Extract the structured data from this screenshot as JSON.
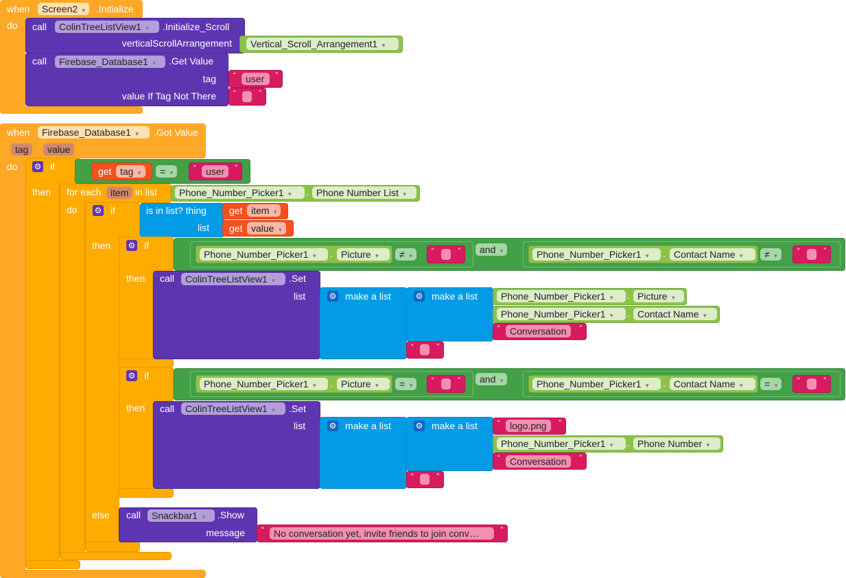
{
  "b1": {
    "when": "when",
    "component": "Screen2",
    "event": ".Initialize",
    "do": "do",
    "call": "call",
    "c1": "ColinTreeListView1",
    "m1": ".Initialize_Scroll",
    "p1": "verticalScrollArrangement",
    "v1": "Vertical_Scroll_Arrangement1",
    "c2": "Firebase_Database1",
    "m2": ".Get Value",
    "p2": "tag",
    "v2": "user",
    "p3": "value If Tag Not There"
  },
  "b2": {
    "when": "when",
    "component": "Firebase_Database1",
    "event": ".Got Value",
    "param1": "tag",
    "param2": "value",
    "do": "do",
    "if": "if",
    "then": "then",
    "else": "else",
    "get": "get",
    "eq": "=",
    "neq": "≠",
    "and": "and",
    "user": "user",
    "for_each": "for each",
    "item": "item",
    "in_list": "in list",
    "picker": "Phone_Number_Picker1",
    "phone_list": "Phone Number List",
    "is_in_list": "is in list? thing",
    "list": "list",
    "value": "value",
    "picture": "Picture",
    "contact_name": "Contact Name",
    "phone_number": "Phone Number",
    "call": "call",
    "listview": "ColinTreeListView1",
    "set": ".Set",
    "make_list": "make a list",
    "conversation": "Conversation",
    "logo": "logo.png",
    "snackbar": "Snackbar1",
    "show": ".Show",
    "message": "message",
    "msg_text": "No conversation yet, invite friends to join conv…"
  },
  "colors": {
    "event": "#FFA726",
    "control": "#FFAB00",
    "procedure": "#5E35B1",
    "logic": "#43A047",
    "component": "#8BC34A",
    "text": "#D81B60",
    "variable": "#F4511E",
    "list": "#039BE5"
  }
}
